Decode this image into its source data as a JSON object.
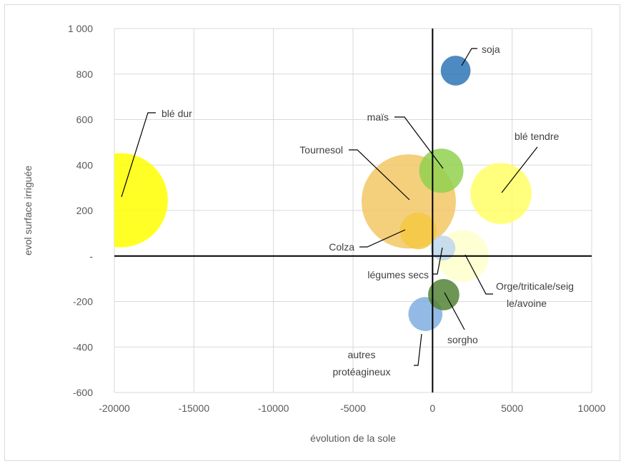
{
  "chart_data": {
    "type": "bubble",
    "xlabel": "évolution de la sole",
    "ylabel": "evol surface irriguée",
    "xlim": [
      -20000,
      10000
    ],
    "ylim": [
      -600,
      1000
    ],
    "x_ticks": [
      -20000,
      -15000,
      -10000,
      -5000,
      0,
      5000,
      10000
    ],
    "x_tick_labels": [
      "-20000",
      "-15000",
      "-10000",
      "-5000",
      "0",
      "5000",
      "10000"
    ],
    "y_ticks": [
      1000,
      800,
      600,
      400,
      200,
      0,
      -200,
      -400,
      -600
    ],
    "y_tick_labels": [
      "1 000",
      "800",
      "600",
      "400",
      "200",
      "-",
      "-200",
      "-400",
      "-600"
    ],
    "grid": true,
    "points": [
      {
        "label": "blé dur",
        "x": -19600,
        "y": 245,
        "size": 100,
        "color": "#FFFF00"
      },
      {
        "label": "Tournesol",
        "x": -1500,
        "y": 240,
        "size": 100,
        "color": "#F2C765"
      },
      {
        "label": "blé tendre",
        "x": 4300,
        "y": 275,
        "size": 42,
        "color": "#FFFF66"
      },
      {
        "label": "Orge/triticale/seigle/avoine",
        "x": 1900,
        "y": 0,
        "size": 30,
        "color": "#FFFFCC"
      },
      {
        "label": "maïs",
        "x": 550,
        "y": 375,
        "size": 22,
        "color": "#92D050"
      },
      {
        "label": "Colza",
        "x": -900,
        "y": 110,
        "size": 15,
        "color": "#F5C842"
      },
      {
        "label": "soja",
        "x": 1450,
        "y": 815,
        "size": 10,
        "color": "#2E75B6"
      },
      {
        "label": "autres protéagineux",
        "x": -450,
        "y": -255,
        "size": 13,
        "color": "#7FAEE0"
      },
      {
        "label": "sorgho",
        "x": 700,
        "y": -170,
        "size": 11,
        "color": "#548235"
      },
      {
        "label": "légumes secs",
        "x": 650,
        "y": 35,
        "size": 7,
        "color": "#BDD7EE"
      }
    ]
  }
}
